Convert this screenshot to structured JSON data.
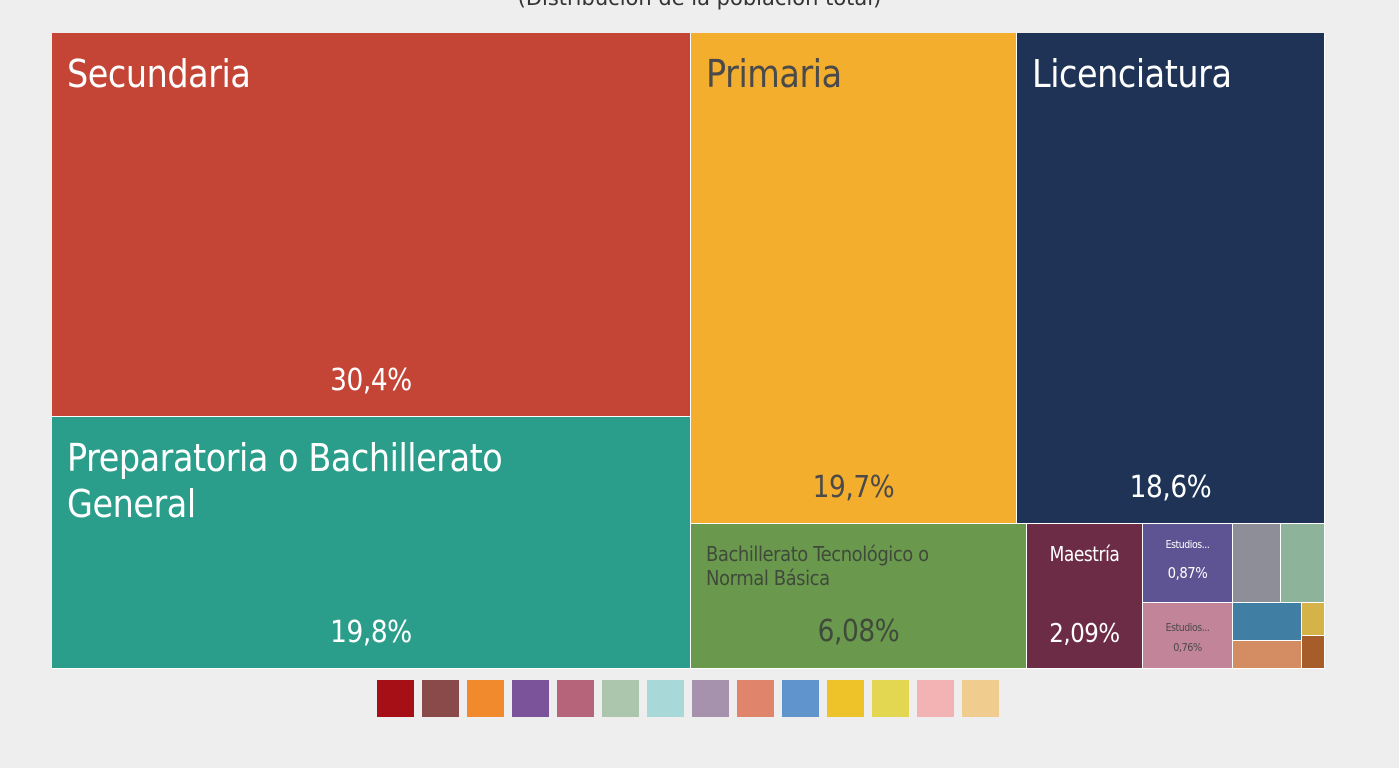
{
  "subtitle": "(Distribución de la población total)",
  "chart_data": {
    "type": "treemap",
    "items": [
      {
        "name": "Secundaria",
        "label": "30,4%",
        "value": 30.4,
        "color": "#c44536",
        "text_color": "#ffffff"
      },
      {
        "name": "Preparatoria o Bachillerato General",
        "label": "19,8%",
        "value": 19.8,
        "color": "#2a9d8b",
        "text_color": "#ffffff"
      },
      {
        "name": "Primaria",
        "label": "19,7%",
        "value": 19.7,
        "color": "#f4ae2e",
        "text_color": "#4a4a4a"
      },
      {
        "name": "Licenciatura",
        "label": "18,6%",
        "value": 18.6,
        "color": "#1e3356",
        "text_color": "#ffffff"
      },
      {
        "name": "Bachillerato Tecnológico o Normal Básica",
        "label": "6,08%",
        "value": 6.08,
        "color": "#6a994e",
        "text_color": "#3f4a3a"
      },
      {
        "name": "Maestría",
        "label": "2,09%",
        "value": 2.09,
        "color": "#6d2c45",
        "text_color": "#ffffff"
      },
      {
        "name": "Estudios...",
        "label": "0,87%",
        "value": 0.87,
        "color": "#5f5493",
        "text_color": "#ffffff"
      },
      {
        "name": "Estudios...",
        "label": "0,76%",
        "value": 0.76,
        "color": "#c28498",
        "text_color": "#4a4a4a"
      },
      {
        "name": "",
        "label": "",
        "value": 0.34,
        "color": "#8d8e97",
        "text_color": "#ffffff"
      },
      {
        "name": "",
        "label": "",
        "value": 0.34,
        "color": "#8db39b",
        "text_color": "#ffffff"
      },
      {
        "name": "",
        "label": "",
        "value": 0.25,
        "color": "#417ea3",
        "text_color": "#ffffff"
      },
      {
        "name": "",
        "label": "",
        "value": 0.05,
        "color": "#d5b348",
        "text_color": "#ffffff"
      },
      {
        "name": "",
        "label": "",
        "value": 0.2,
        "color": "#d48d63",
        "text_color": "#ffffff"
      },
      {
        "name": "",
        "label": "",
        "value": 0.06,
        "color": "#a65d29",
        "text_color": "#ffffff"
      }
    ]
  },
  "legend_colors": [
    "#a50f15",
    "#8b4a4a",
    "#f08a2c",
    "#7a539a",
    "#b5647a",
    "#abc6ad",
    "#a8d8d8",
    "#a692ad",
    "#e0856b",
    "#5f95cc",
    "#eec32a",
    "#e3d650",
    "#f3b3b5",
    "#f0cd8f"
  ]
}
